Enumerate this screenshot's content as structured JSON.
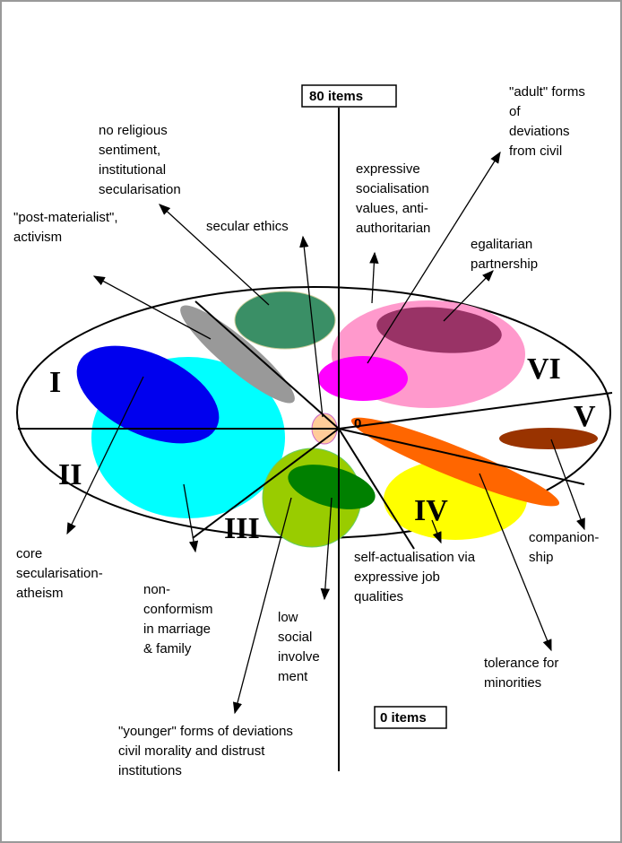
{
  "axis": {
    "top_label": "80 items",
    "bottom_label": "0 items",
    "origin": "0"
  },
  "segments": [
    "I",
    "II",
    "III",
    "IV",
    "V",
    "VI"
  ],
  "labels": {
    "no_religious": [
      "no religious",
      "sentiment,",
      "institutional",
      "secularisation"
    ],
    "post_materialist": [
      "\"post-materialist\",",
      "activism"
    ],
    "secular_ethics": [
      "secular ethics"
    ],
    "expressive": [
      "expressive",
      "socialisation",
      "values, anti-",
      "authoritarian"
    ],
    "adult": [
      "\"adult\" forms",
      "of",
      "deviations",
      "from civil"
    ],
    "egalitarian": [
      "egalitarian",
      "partnership"
    ],
    "core": [
      "core",
      "secularisation-",
      "atheism"
    ],
    "nonconformism": [
      "non-",
      "conformism",
      "in marriage",
      "& family"
    ],
    "low_social": [
      "low",
      "social",
      "involve",
      "ment"
    ],
    "younger": [
      "\"younger\" forms of deviations",
      "civil morality and distrust",
      "institutions"
    ],
    "self_actualisation": [
      "self-actualisation via",
      "expressive job",
      "qualities"
    ],
    "companionship": [
      "companion-",
      "ship"
    ],
    "tolerance": [
      "tolerance for",
      "minorities"
    ]
  }
}
